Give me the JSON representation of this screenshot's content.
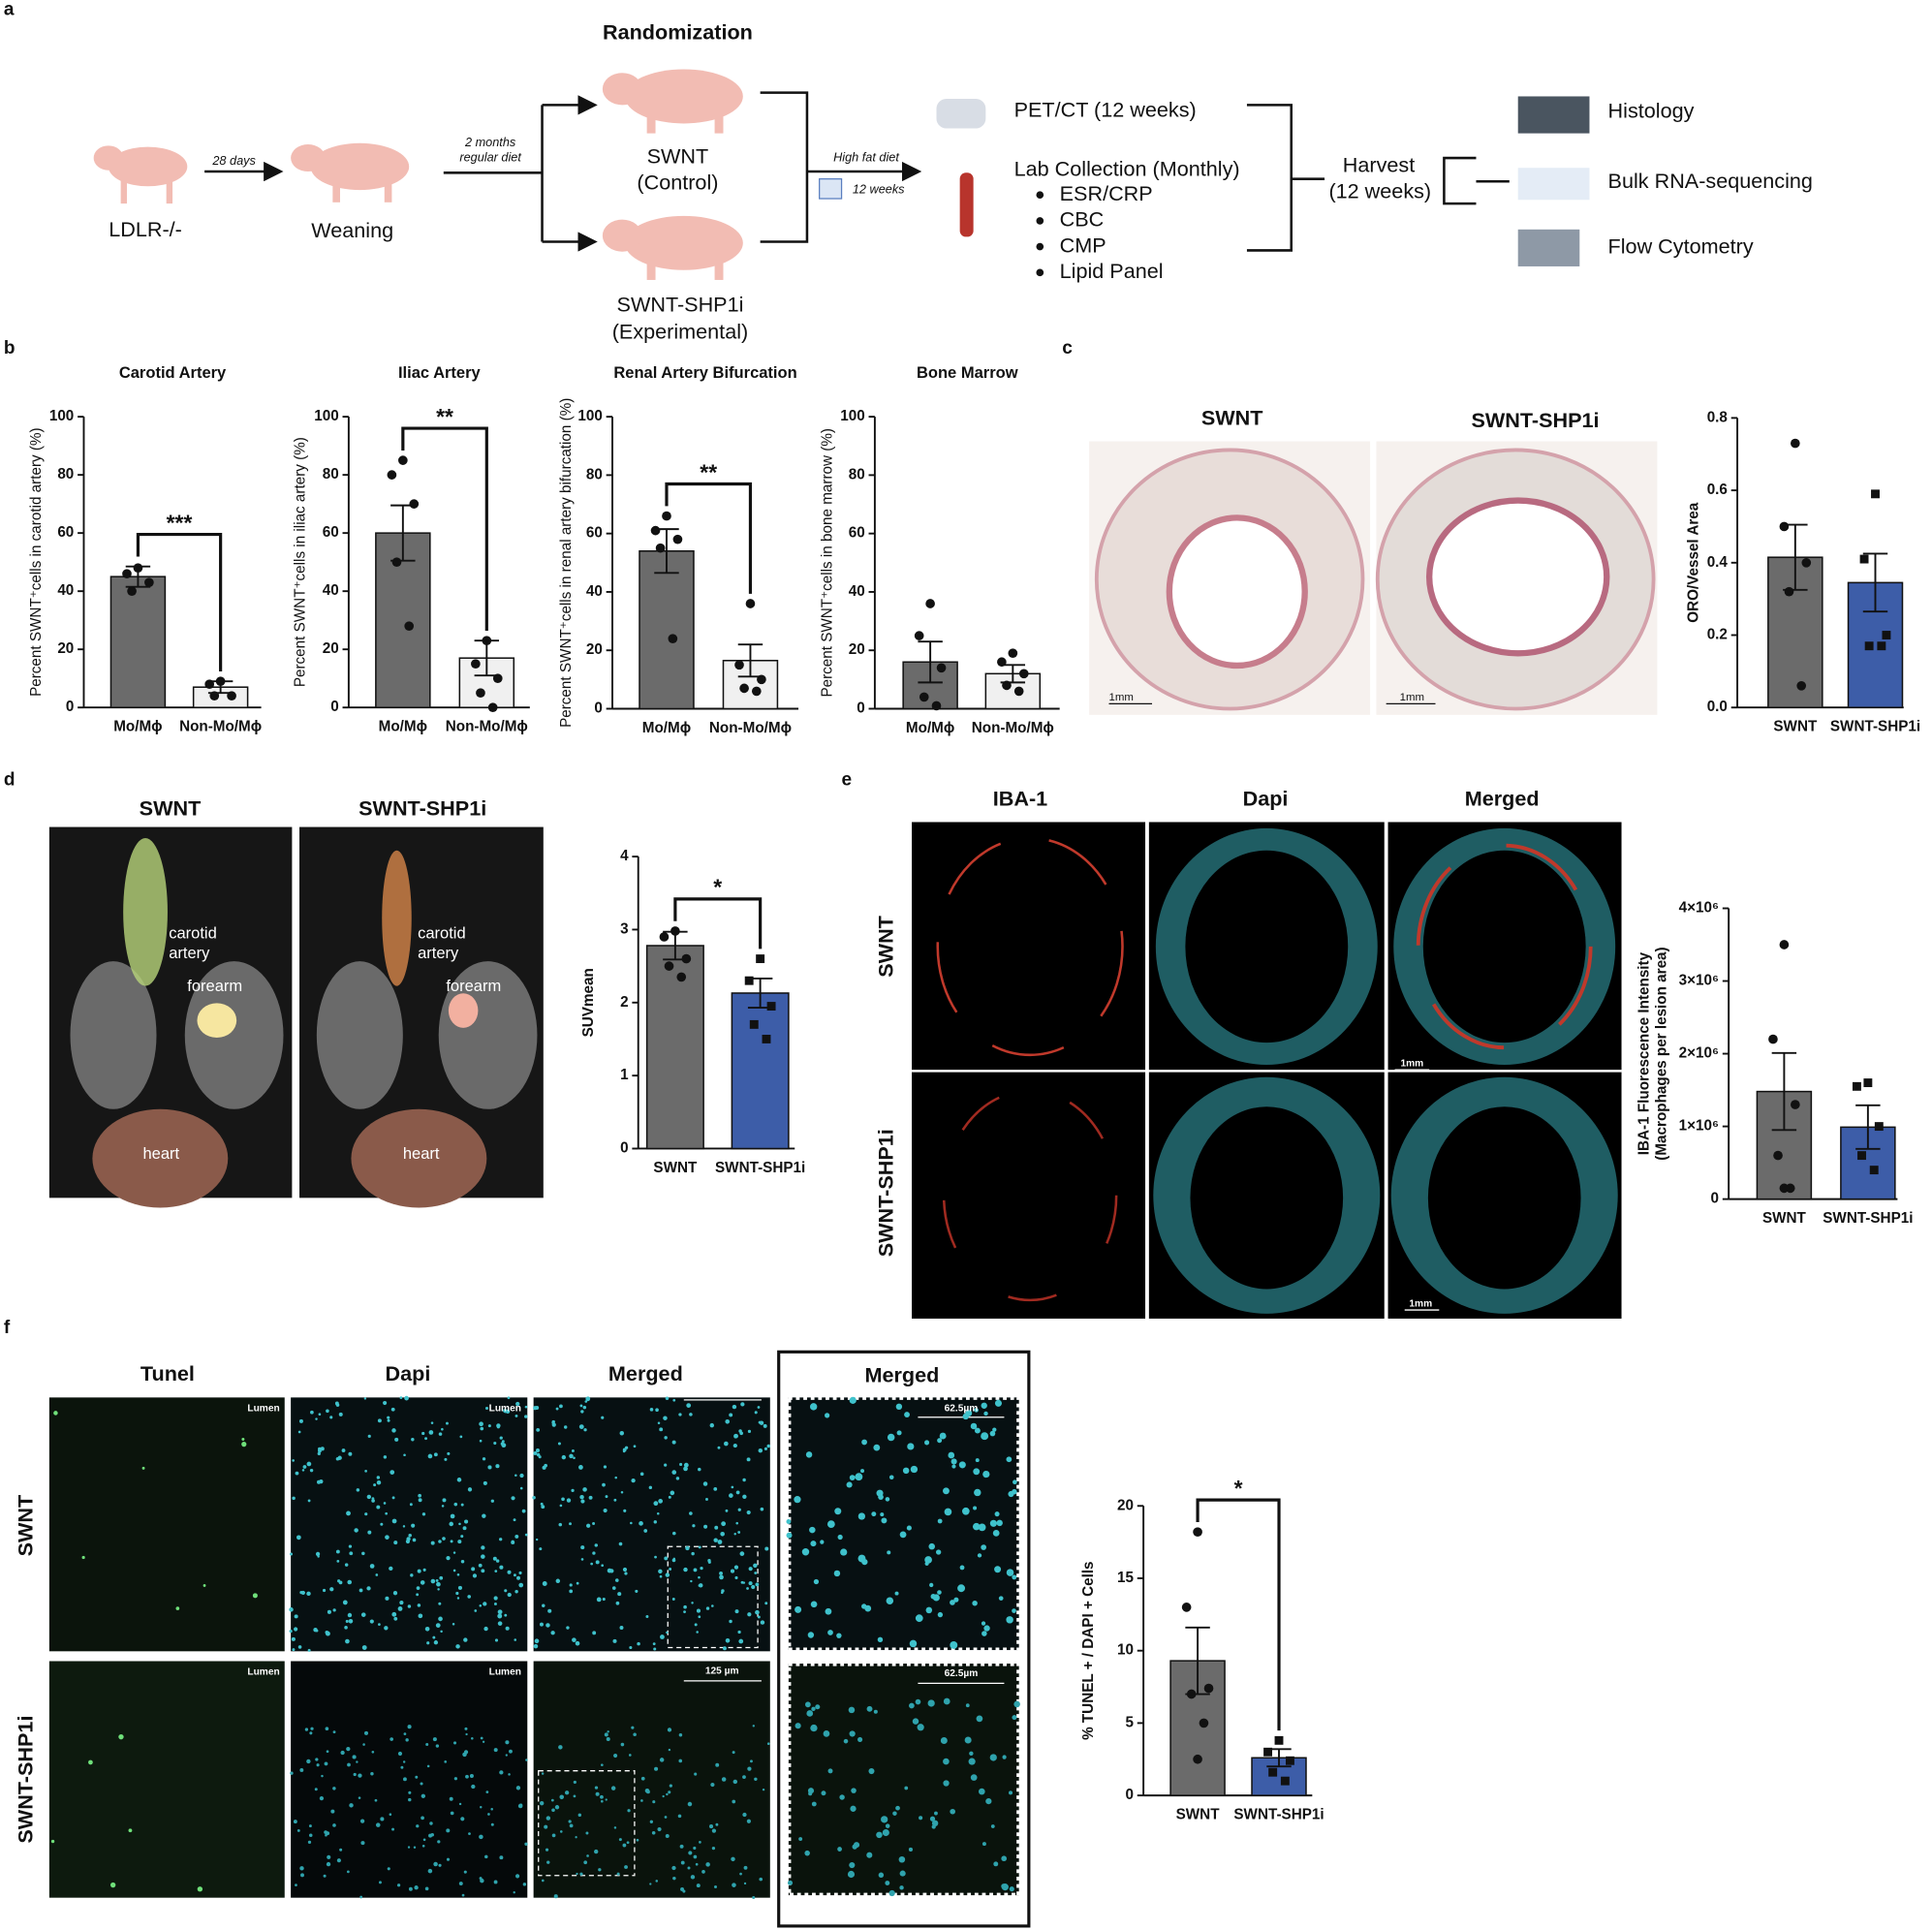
{
  "panel_labels": [
    "a",
    "b",
    "c",
    "d",
    "e",
    "f"
  ],
  "panel_a": {
    "title": "Randomization",
    "start": "LDLR-/-",
    "step1": "28 days",
    "weaning": "Weaning",
    "step2": [
      "2 months",
      "regular diet"
    ],
    "group1": [
      "SWNT",
      "(Control)"
    ],
    "group2": [
      "SWNT-SHP1i",
      "(Experimental)"
    ],
    "diet": [
      "High fat diet",
      "12 weeks"
    ],
    "imaging": "PET/CT (12 weeks)",
    "lab": "Lab Collection (Monthly)",
    "lab_items": [
      "ESR/CRP",
      "CBC",
      "CMP",
      "Lipid Panel"
    ],
    "harvest": [
      "Harvest",
      "(12 weeks)"
    ],
    "assays": [
      "Histology",
      "Bulk RNA-sequencing",
      "Flow Cytometry"
    ]
  },
  "panel_c": {
    "columns": [
      "SWNT",
      "SWNT-SHP1i"
    ],
    "scale_bars": [
      "1mm",
      "1mm"
    ]
  },
  "panel_d": {
    "columns": [
      "SWNT",
      "SWNT-SHP1i"
    ],
    "annotations": [
      [
        "carotid",
        "artery",
        "forearm",
        "heart"
      ],
      [
        "carotid",
        "artery",
        "forearm",
        "heart"
      ]
    ]
  },
  "panel_e": {
    "columns": [
      "IBA-1",
      "Dapi",
      "Merged"
    ],
    "rows": [
      "SWNT",
      "SWNT-SHP1i"
    ],
    "scale_bars": [
      "1mm",
      "1mm"
    ]
  },
  "panel_f": {
    "columns": [
      "Tunel",
      "Dapi",
      "Merged",
      "Merged"
    ],
    "rows": [
      "SWNT",
      "SWNT-SHP1i"
    ],
    "lumen": [
      "Lumen",
      "Lumen",
      "Lumen",
      "Lumen"
    ],
    "scale_bars": [
      "125 µm",
      "125 µm",
      "62.5µm",
      "62.5µm"
    ]
  },
  "chart_data": [
    {
      "type": "bar",
      "title": "Carotid Artery",
      "y_label": [
        "Percent SWNT⁺cells in carotid artery (%)"
      ],
      "categories": [
        "Mo/Mϕ",
        "Non-Mo/Mϕ"
      ],
      "values": [
        45,
        7
      ],
      "errors": [
        3.5,
        2
      ],
      "points": [
        [
          48,
          46,
          43,
          40
        ],
        [
          9,
          8,
          4,
          4
        ]
      ],
      "colors": [
        "#6b6b6b",
        "#f0f0f0"
      ],
      "markers": [
        "circle",
        "circle"
      ],
      "ylim": [
        0,
        100
      ],
      "yticks": [
        0,
        20,
        40,
        60,
        80,
        100
      ],
      "significance": "***"
    },
    {
      "type": "bar",
      "title": "Iliac Artery",
      "y_label": [
        "Percent SWNT⁺cells in iliac artery (%)"
      ],
      "categories": [
        "Mo/Mϕ",
        "Non-Mo/Mϕ"
      ],
      "values": [
        60,
        17
      ],
      "errors": [
        9.5,
        6
      ],
      "points": [
        [
          85,
          80,
          70,
          50,
          28
        ],
        [
          23,
          15,
          10,
          5,
          0
        ]
      ],
      "colors": [
        "#6b6b6b",
        "#f0f0f0"
      ],
      "markers": [
        "circle",
        "circle"
      ],
      "ylim": [
        0,
        100
      ],
      "yticks": [
        0,
        20,
        40,
        60,
        80,
        100
      ],
      "significance": "**"
    },
    {
      "type": "bar",
      "title": "Renal Artery Bifurcation",
      "y_label": [
        "Percent SWNT⁺cells in renal artery bifurcation (%)"
      ],
      "categories": [
        "Mo/Mϕ",
        "Non-Mo/Mϕ"
      ],
      "values": [
        54,
        16.5
      ],
      "errors": [
        7.5,
        5.5
      ],
      "points": [
        [
          66,
          61,
          58,
          55,
          24
        ],
        [
          36,
          15,
          10,
          7,
          6
        ]
      ],
      "colors": [
        "#6b6b6b",
        "#f0f0f0"
      ],
      "markers": [
        "circle",
        "circle"
      ],
      "ylim": [
        0,
        100
      ],
      "yticks": [
        0,
        20,
        40,
        60,
        80,
        100
      ],
      "significance": "**"
    },
    {
      "type": "bar",
      "title": "Bone Marrow",
      "y_label": [
        "Percent SWNT⁺cells in bone marrow (%)"
      ],
      "categories": [
        "Mo/Mϕ",
        "Non-Mo/Mϕ"
      ],
      "values": [
        16,
        12
      ],
      "errors": [
        7,
        3
      ],
      "points": [
        [
          36,
          25,
          14,
          4,
          1
        ],
        [
          19,
          16,
          12,
          8,
          6
        ]
      ],
      "colors": [
        "#6b6b6b",
        "#f0f0f0"
      ],
      "markers": [
        "circle",
        "circle"
      ],
      "ylim": [
        0,
        100
      ],
      "yticks": [
        0,
        20,
        40,
        60,
        80,
        100
      ]
    },
    {
      "type": "bar",
      "y_label": [
        "ORO/Vessel Area"
      ],
      "categories": [
        "SWNT",
        "SWNT-SHP1i"
      ],
      "values": [
        0.415,
        0.345
      ],
      "errors": [
        0.09,
        0.08
      ],
      "points": [
        [
          0.73,
          0.5,
          0.4,
          0.32,
          0.06
        ],
        [
          0.59,
          0.41,
          0.2,
          0.17,
          0.17
        ]
      ],
      "colors": [
        "#6b6b6b",
        "#3d5da8"
      ],
      "markers": [
        "circle",
        "square"
      ],
      "ylim": [
        0,
        0.8
      ],
      "yticks": [
        {
          "value": 0,
          "label": "0.0"
        },
        0.2,
        0.4,
        0.6,
        0.8
      ]
    },
    {
      "type": "bar",
      "y_label": [
        "SUVmean"
      ],
      "categories": [
        "SWNT",
        "SWNT-SHP1i"
      ],
      "values": [
        2.78,
        2.13
      ],
      "errors": [
        0.19,
        0.2
      ],
      "points": [
        [
          2.98,
          2.9,
          2.6,
          2.5,
          2.35
        ],
        [
          2.6,
          2.3,
          1.95,
          1.7,
          1.5
        ]
      ],
      "colors": [
        "#6b6b6b",
        "#3d5da8"
      ],
      "markers": [
        "circle",
        "square"
      ],
      "ylim": [
        0,
        4
      ],
      "yticks": [
        0,
        1,
        2,
        3,
        4
      ],
      "significance": "*"
    },
    {
      "type": "bar",
      "y_label": [
        "IBA-1 Fluorescence Intensity",
        "(Macrophages per lesion area)"
      ],
      "categories": [
        "SWNT",
        "SWNT-SHP1i"
      ],
      "values": [
        1480000,
        990000
      ],
      "errors": [
        530000,
        300000
      ],
      "points": [
        [
          3500000,
          2200000,
          1300000,
          600000,
          150000,
          150000
        ],
        [
          1600000,
          1550000,
          1000000,
          600000,
          400000
        ]
      ],
      "colors": [
        "#6b6b6b",
        "#3d5da8"
      ],
      "markers": [
        "circle",
        "square"
      ],
      "ylim": [
        0,
        4000000
      ],
      "yticks": [
        0,
        {
          "value": 1000000,
          "label": "1×10⁶"
        },
        {
          "value": 2000000,
          "label": "2×10⁶"
        },
        {
          "value": 3000000,
          "label": "3×10⁶"
        },
        {
          "value": 4000000,
          "label": "4×10⁶"
        }
      ]
    },
    {
      "type": "bar",
      "y_label": [
        "% TUNEL + / DAPI + Cells"
      ],
      "categories": [
        "SWNT",
        "SWNT-SHP1i"
      ],
      "values": [
        9.3,
        2.6
      ],
      "errors": [
        2.3,
        0.6
      ],
      "points": [
        [
          18.2,
          13,
          7.4,
          7,
          5,
          2.5
        ],
        [
          3.8,
          3,
          2.4,
          1.6,
          1
        ]
      ],
      "colors": [
        "#6b6b6b",
        "#3d5da8"
      ],
      "markers": [
        "circle",
        "square"
      ],
      "ylim": [
        0,
        20
      ],
      "yticks": [
        0,
        5,
        10,
        15,
        20
      ],
      "significance": "*"
    }
  ]
}
